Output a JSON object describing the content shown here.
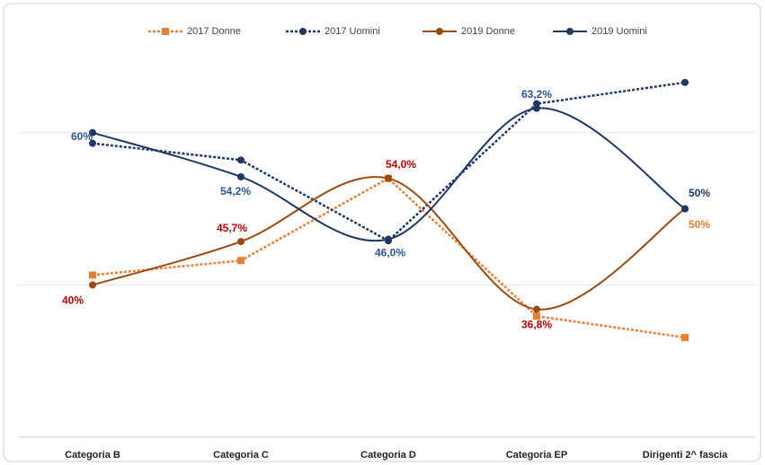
{
  "chart_data": {
    "type": "line",
    "categories": [
      "Categoria B",
      "Categoria C",
      "Categoria D",
      "Categoria EP",
      "Dirigenti 2^ fascia"
    ],
    "series": [
      {
        "name": "2017 Donne",
        "color": "#ed7d31",
        "style": "dotted",
        "marker": "square",
        "smooth": false,
        "values": [
          41.3,
          43.2,
          54.0,
          35.9,
          33.1
        ]
      },
      {
        "name": "2017 Uomini",
        "color": "#1f3864",
        "style": "dotted",
        "marker": "circle",
        "smooth": false,
        "values": [
          58.6,
          56.4,
          45.8,
          63.8,
          66.6
        ]
      },
      {
        "name": "2019 Donne",
        "color": "#9c4a0f",
        "style": "solid",
        "marker": "circle",
        "smooth": true,
        "values": [
          40,
          45.7,
          54.0,
          36.8,
          50
        ],
        "value_labels": [
          "40%",
          "45,7%",
          "54,0%",
          "36,8%",
          "50%"
        ],
        "label_colors": [
          "#c00000",
          "#c00000",
          "#c00000",
          "#c00000",
          "#ed7d31"
        ]
      },
      {
        "name": "2019 Uomini",
        "color": "#1f3864",
        "style": "solid",
        "marker": "circle",
        "smooth": true,
        "values": [
          60,
          54.2,
          46.0,
          63.2,
          50
        ],
        "value_labels": [
          "60%",
          "54,2%",
          "46,0%",
          "63,2%",
          "50%"
        ],
        "label_colors": [
          "#2f5597",
          "#2f5597",
          "#2f5597",
          "#2f5597",
          "#1f3864"
        ]
      }
    ],
    "ylim": [
      20,
      70
    ],
    "yticks": [
      40,
      60
    ],
    "grid": true,
    "legend": "top"
  }
}
